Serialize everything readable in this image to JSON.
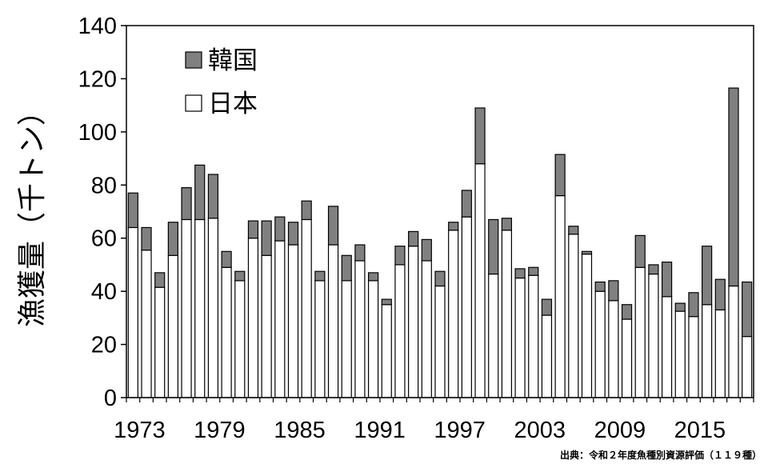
{
  "chart_data": {
    "type": "bar",
    "stacked": true,
    "x": [
      1973,
      1974,
      1975,
      1976,
      1977,
      1978,
      1979,
      1980,
      1981,
      1982,
      1983,
      1984,
      1985,
      1986,
      1987,
      1988,
      1989,
      1990,
      1991,
      1992,
      1993,
      1994,
      1995,
      1996,
      1997,
      1998,
      1999,
      2000,
      2001,
      2002,
      2003,
      2004,
      2005,
      2006,
      2007,
      2008,
      2009,
      2010,
      2011,
      2012,
      2013,
      2014,
      2015,
      2016,
      2017,
      2018,
      2019
    ],
    "xticks": [
      "1973",
      "1979",
      "1985",
      "1991",
      "1997",
      "2003",
      "2009",
      "2015"
    ],
    "series": [
      {
        "name": "日本",
        "color": "#ffffff",
        "values": [
          64,
          55.5,
          41.5,
          53.5,
          67,
          67,
          67.5,
          49,
          44,
          60,
          53.5,
          59,
          57.5,
          67,
          44,
          57.5,
          44,
          51.5,
          44,
          35,
          50,
          57,
          51.5,
          42,
          63,
          68,
          88,
          46.5,
          63,
          45,
          46,
          31,
          76,
          61.5,
          54,
          40,
          36.5,
          29.5,
          49,
          46.5,
          38,
          32.5,
          30.5,
          35,
          33,
          42,
          23
        ]
      },
      {
        "name": "韓国",
        "color": "#808080",
        "values": [
          13,
          8.5,
          5.5,
          12.5,
          12,
          20.5,
          16.5,
          6,
          3.5,
          6.5,
          13,
          9,
          8.5,
          7,
          3.5,
          14.5,
          9.5,
          6,
          3,
          2,
          7,
          5.5,
          8,
          5.5,
          3,
          10,
          21,
          20.5,
          4.5,
          3.5,
          3,
          6,
          15.5,
          3,
          1,
          3.5,
          7.5,
          5.5,
          12,
          3.5,
          13,
          3,
          9,
          22,
          11.5,
          74.5,
          20.5
        ]
      }
    ],
    "legend": {
      "position": "top-left"
    },
    "ylabel": "漁獲量（千トン）",
    "ylim": [
      0,
      140
    ],
    "yticks": [
      "0",
      "20",
      "40",
      "60",
      "80",
      "100",
      "120",
      "140"
    ],
    "grid": false
  },
  "source": "出典：令和２年度魚種別資源評価（１１９種）"
}
